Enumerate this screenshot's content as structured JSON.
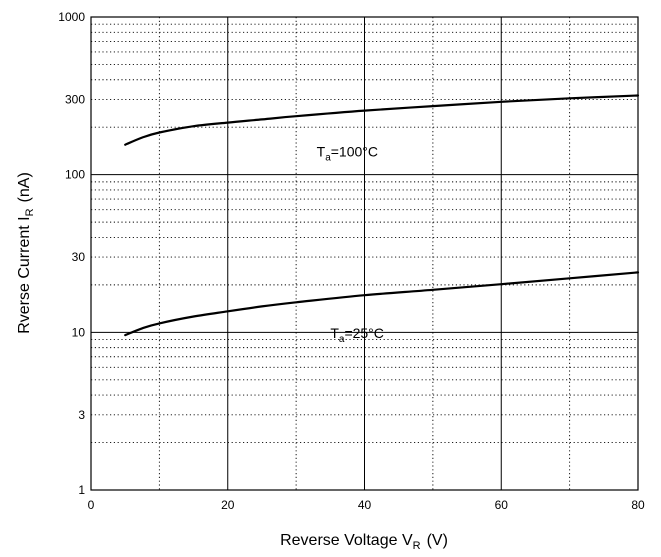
{
  "chart_data": {
    "type": "line",
    "xlabel": {
      "main": "Reverse Voltage V",
      "sub": "R",
      "unit": "(V)"
    },
    "ylabel": {
      "main": "Rverse Current I",
      "sub": "R",
      "unit": "(nA)"
    },
    "xlim": [
      0,
      80
    ],
    "ylim": [
      1,
      1000
    ],
    "y_scale": "log",
    "x_ticks": [
      0,
      20,
      40,
      60,
      80
    ],
    "x_tick_labels": [
      "0",
      "20",
      "40",
      "60",
      "80"
    ],
    "y_ticks": [
      1,
      3,
      10,
      30,
      100,
      300,
      1000
    ],
    "y_tick_labels": [
      "1",
      "3",
      "10",
      "30",
      "100",
      "300",
      "1000"
    ],
    "grid": true,
    "series": [
      {
        "name": "Ta=100°C",
        "x": [
          5,
          7.5,
          10,
          15,
          20,
          25,
          30,
          40,
          50,
          60,
          70,
          80
        ],
        "y": [
          155,
          172,
          185,
          203,
          214,
          224,
          235,
          255,
          272,
          290,
          305,
          318
        ]
      },
      {
        "name": "Ta=25°C",
        "x": [
          5,
          7.5,
          10,
          15,
          20,
          25,
          30,
          40,
          50,
          60,
          70,
          80
        ],
        "y": [
          9.6,
          10.6,
          11.4,
          12.6,
          13.6,
          14.6,
          15.5,
          17.2,
          18.6,
          20.2,
          22,
          24
        ]
      }
    ],
    "annotations": [
      {
        "main": "T",
        "sub": "a",
        "rest": "=100°C",
        "x": 33,
        "y": 140
      },
      {
        "main": "T",
        "sub": "a",
        "rest": "=25°C",
        "x": 35,
        "y": 9.9
      }
    ],
    "colors": {
      "line": "#000000",
      "grid": "#000000",
      "background": "#ffffff"
    }
  }
}
